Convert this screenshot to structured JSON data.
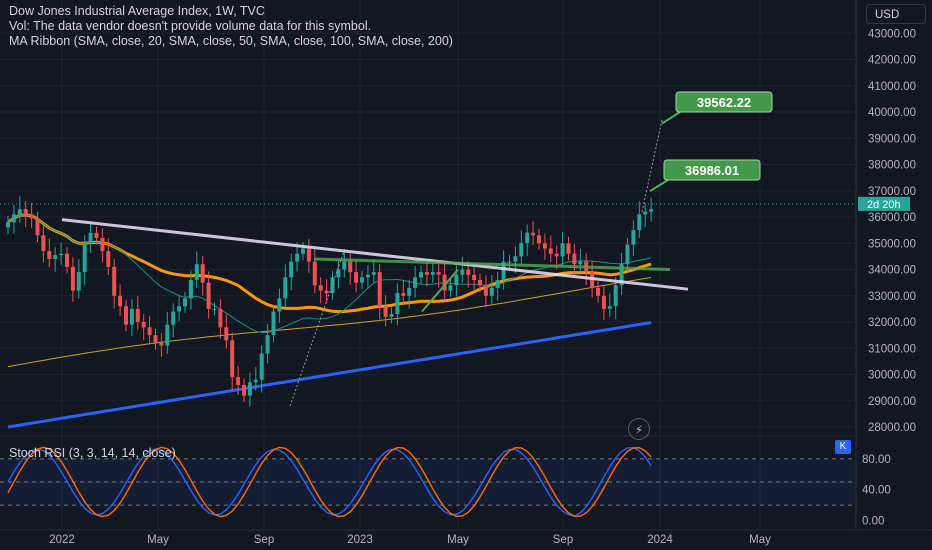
{
  "legend": {
    "title": "Dow Jones Industrial Average Index, 1W, TVC",
    "vol": "Vol: The data vendor doesn't provide volume data for this symbol.",
    "ma_ribbon": "MA Ribbon (SMA, close, 20, SMA, close, 50, SMA, close, 100, SMA, close, 200)"
  },
  "currency": "USD",
  "stoch_legend": "Stoch RSI (3, 3, 14, 14, close)",
  "k_badge": "K",
  "time_labels": [
    "2022",
    "May",
    "Sep",
    "2023",
    "May",
    "Sep",
    "2024",
    "May"
  ],
  "price_labels": [
    "43000.00",
    "42000.00",
    "41000.00",
    "40000.00",
    "39000.00",
    "38000.00",
    "37000.00",
    "36000.00",
    "35000.00",
    "34000.00",
    "33000.00",
    "32000.00",
    "31000.00",
    "30000.00",
    "29000.00",
    "28000.00"
  ],
  "stoch_labels": [
    "80.00",
    "40.00",
    "0.00"
  ],
  "target_labels": [
    "39562.22",
    "36986.01"
  ],
  "countdown_label": "2d 20h",
  "icons": {
    "flash": "lightning-icon"
  },
  "colors": {
    "background": "#131722",
    "up": "#26a69a",
    "down": "#ef5350",
    "ma20": "#089981",
    "ma50": "#f7a600",
    "ma100": "#ff9800",
    "ma200": "#2962ff",
    "resistance": "#e1d8ee",
    "support_zone": "#4caf50",
    "stoch_k": "#2962ff",
    "stoch_d": "#ff6d00",
    "target": "#4caf50"
  },
  "chart_data": {
    "type": "candlestick",
    "title": "Dow Jones Industrial Average Index, 1W, TVC",
    "ylim": [
      27500,
      43500
    ],
    "price_ticks": [
      28000,
      29000,
      30000,
      31000,
      32000,
      33000,
      34000,
      35000,
      36000,
      37000,
      38000,
      39000,
      40000,
      41000,
      42000,
      43000
    ],
    "close": [
      35800,
      36100,
      36300,
      36100,
      35950,
      35300,
      34700,
      34400,
      34550,
      34600,
      34100,
      33200,
      33900,
      35000,
      35400,
      35200,
      34700,
      34100,
      33000,
      32600,
      31900,
      32500,
      32000,
      31800,
      31500,
      31200,
      31100,
      31900,
      32400,
      32600,
      32900,
      33600,
      34200,
      33500,
      32500,
      32500,
      31800,
      31300,
      29900,
      29600,
      29200,
      29700,
      29800,
      30800,
      31500,
      32400,
      32900,
      33700,
      34300,
      34600,
      34800,
      34300,
      33400,
      33200,
      33100,
      33700,
      34000,
      34300,
      33900,
      33500,
      33700,
      33800,
      33900,
      32600,
      32200,
      32300,
      33100,
      33000,
      33300,
      33700,
      33900,
      33800,
      33900,
      33800,
      33200,
      33400,
      33800,
      34000,
      33800,
      33600,
      33400,
      33000,
      33300,
      33600,
      34300,
      34300,
      34500,
      35000,
      35400,
      35300,
      35000,
      34800,
      34600,
      34500,
      35000,
      34600,
      34200,
      34300,
      33900,
      33300,
      33000,
      32500,
      32600,
      33400,
      34200,
      34950,
      35500,
      36100,
      36200,
      36300
    ],
    "ribbon": {
      "names": [
        "SMA 20",
        "SMA 50",
        "SMA 100",
        "SMA 200"
      ],
      "last_values": [
        34700,
        34000,
        33500,
        32000
      ]
    },
    "annotations": {
      "targets": [
        39562.22,
        36986.01
      ],
      "resistance_line": [
        [
          0,
          35900
        ],
        [
          113,
          33200
        ]
      ],
      "support_zone": 34000
    },
    "stoch_rsi": {
      "name": "Stoch RSI (3, 3, 14, 14, close)",
      "ylim": [
        0,
        100
      ],
      "bands": [
        80,
        50,
        20
      ]
    }
  }
}
